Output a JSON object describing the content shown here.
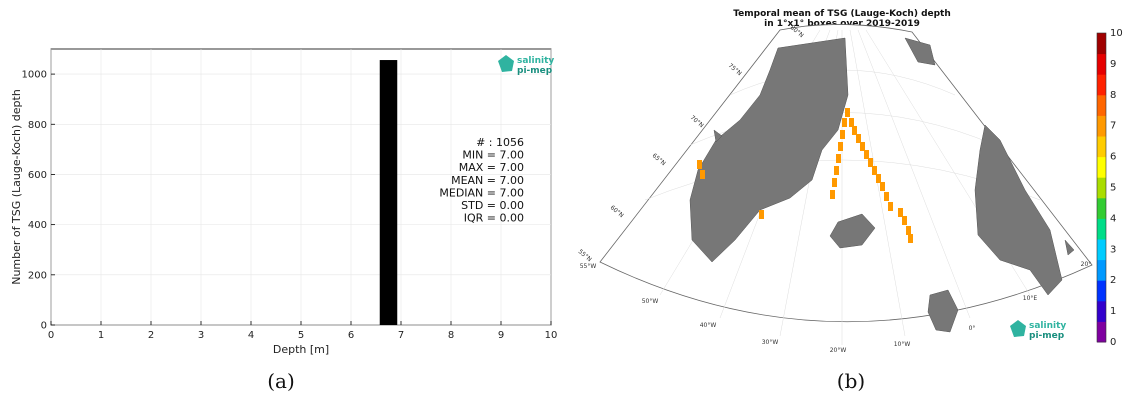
{
  "chart_data": [
    {
      "type": "bar",
      "x": [
        6.75
      ],
      "values": [
        1056
      ],
      "bar_width": 0.35,
      "xlabel": "Depth [m]",
      "ylabel": "Number of TSG (Lauge-Koch) depth",
      "xlim": [
        0,
        10
      ],
      "ylim": [
        0,
        1100
      ],
      "xticks": [
        "0",
        "1",
        "2",
        "3",
        "4",
        "5",
        "6",
        "7",
        "8",
        "9",
        "10"
      ],
      "yticks": [
        "0",
        "200",
        "400",
        "600",
        "800",
        "1000"
      ],
      "grid": true,
      "bar_color": "#000000",
      "stats": [
        "# : 1056",
        "MIN = 7.00",
        "MAX =  7.00",
        "MEAN = 7.00",
        "MEDIAN = 7.00",
        "STD = 0.00",
        "IQR = 0.00"
      ]
    },
    {
      "type": "heatmap",
      "title_line1": "Temporal mean of TSG (Lauge-Koch) depth",
      "title_line2": "in 1°x1° boxes over 2019-2019",
      "colorbar_ticks": [
        "0",
        "1",
        "2",
        "3",
        "4",
        "5",
        "6",
        "7",
        "8",
        "9",
        "10"
      ],
      "colorbar_range": [
        0,
        10
      ],
      "track_value": 7,
      "track_color": "#ff9900",
      "land_color": "#777777",
      "lat_labels": [
        "80°N",
        "75°N",
        "70°N",
        "65°N",
        "60°N",
        "55°N"
      ],
      "lon_labels": [
        "55°W",
        "50°W",
        "40°W",
        "30°W",
        "20°W",
        "10°W",
        "0°",
        "10°E",
        "20°"
      ]
    }
  ],
  "logo": {
    "line1": "salinity",
    "line2": "pi-mep"
  },
  "captions": {
    "a": "(a)",
    "b": "(b)"
  }
}
